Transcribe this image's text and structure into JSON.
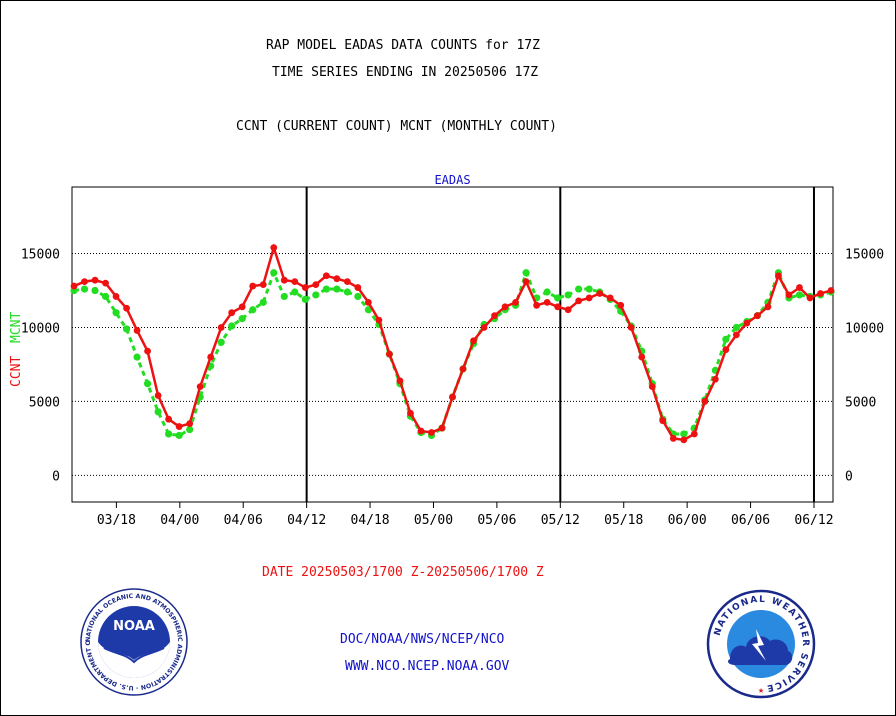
{
  "header": {
    "line1": "RAP MODEL EADAS DATA COUNTS for 17Z",
    "line2": "TIME SERIES ENDING IN 20250506 17Z",
    "line3": "CCNT (CURRENT COUNT) MCNT (MONTHLY COUNT)"
  },
  "footer": {
    "date_range": "DATE 20250503/1700 Z-20250506/1700 Z",
    "org": "DOC/NOAA/NWS/NCEP/NCO",
    "url": "WWW.NCO.NCEP.NOAA.GOV"
  },
  "logos": {
    "noaa": {
      "text": "NOAA",
      "ring": "NATIONAL OCEANIC AND ATMOSPHERIC ADMINISTRATION · U.S. DEPARTMENT OF COMMERCE"
    },
    "nws": {
      "ring": "NATIONAL WEATHER SERVICE"
    }
  },
  "colors": {
    "ccnt": "#ee1111",
    "mcnt": "#22dd22",
    "title": "#1111cc",
    "date": "#ee1111"
  },
  "chart_data": {
    "type": "line",
    "title": "EADAS",
    "ylabel_ccnt": "CCNT",
    "ylabel_mcnt": "MCNT",
    "ylim": [
      -1800,
      19500
    ],
    "yticks": [
      0,
      5000,
      10000,
      15000
    ],
    "ytick_labels": [
      "0",
      "5000",
      "10000",
      "15000"
    ],
    "xlim": [
      -3.5,
      56.5
    ],
    "xticks": [
      0,
      5,
      10,
      15,
      20,
      25,
      30,
      35,
      40,
      45,
      50,
      55
    ],
    "xtick_labels": [
      "03/18",
      "04/00",
      "04/06",
      "04/12",
      "04/18",
      "05/00",
      "05/06",
      "05/12",
      "05/18",
      "06/00",
      "06/06",
      "06/12"
    ],
    "vlines": [
      15,
      35,
      55
    ],
    "grid": true,
    "series": [
      {
        "name": "CCNT",
        "values": [
          12800,
          13100,
          13200,
          13000,
          12100,
          11300,
          9800,
          8400,
          5400,
          3800,
          3300,
          3500,
          6000,
          8000,
          10000,
          11000,
          11400,
          12800,
          12900,
          15400,
          13200,
          13100,
          12700,
          12900,
          13500,
          13300,
          13100,
          12700,
          11700,
          10500,
          8200,
          6400,
          4200,
          3000,
          2900,
          3200,
          5300,
          7200,
          9100,
          10000,
          10800,
          11400,
          11700,
          13100,
          11500,
          11700,
          11400,
          11200,
          11800,
          12000,
          12300,
          12000,
          11500,
          10000,
          8000,
          6000,
          3700,
          2500,
          2400,
          2800,
          5000,
          6500,
          8500,
          9500,
          10300,
          10800,
          11400,
          13500,
          12200,
          12700,
          12000,
          12300,
          12500
        ]
      },
      {
        "name": "MCNT",
        "values": [
          12500,
          12600,
          12500,
          12100,
          11000,
          9900,
          8000,
          6200,
          4300,
          2800,
          2700,
          3100,
          5300,
          7400,
          9000,
          10100,
          10600,
          11200,
          11700,
          13700,
          12100,
          12400,
          11900,
          12200,
          12600,
          12600,
          12400,
          12100,
          11200,
          10200,
          8200,
          6200,
          4000,
          2900,
          2700,
          3200,
          5300,
          7200,
          8900,
          10200,
          10600,
          11200,
          11500,
          13700,
          12000,
          12400,
          12000,
          12200,
          12600,
          12600,
          12400,
          11900,
          11100,
          10100,
          8400,
          6200,
          3800,
          2800,
          2800,
          3200,
          5100,
          7100,
          9200,
          10000,
          10400,
          10800,
          11700,
          13700,
          12000,
          12200,
          12100,
          12200,
          12400
        ]
      }
    ]
  }
}
